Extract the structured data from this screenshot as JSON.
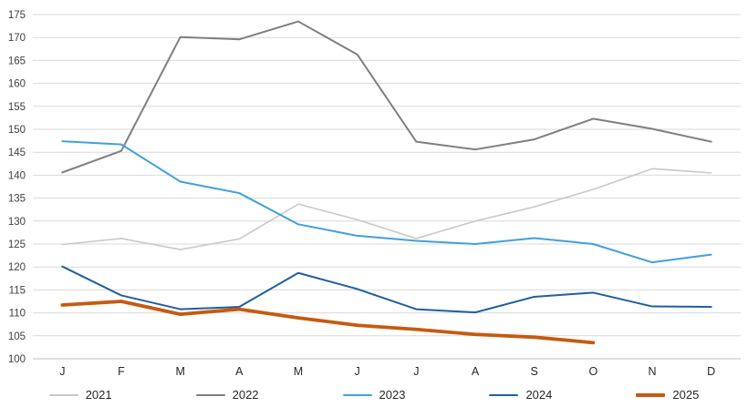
{
  "chart_data": {
    "type": "line",
    "title": "",
    "xlabel": "",
    "ylabel": "",
    "x": [
      "J",
      "F",
      "M",
      "A",
      "M",
      "J",
      "J",
      "A",
      "S",
      "O",
      "N",
      "D"
    ],
    "series": [
      {
        "name": "2021",
        "color": "#c9c9c9",
        "width": 1.6,
        "values": [
          124.9,
          126.2,
          123.8,
          126.1,
          133.7,
          130.3,
          126.2,
          130.0,
          133.1,
          136.9,
          141.4,
          140.5
        ]
      },
      {
        "name": "2022",
        "color": "#7f7f7f",
        "width": 2,
        "values": [
          140.6,
          145.3,
          170.1,
          169.6,
          173.5,
          166.3,
          147.3,
          145.6,
          147.8,
          152.3,
          150.1,
          147.3
        ]
      },
      {
        "name": "2023",
        "color": "#41a0dc",
        "width": 2,
        "values": [
          147.4,
          146.7,
          138.6,
          136.1,
          129.3,
          126.8,
          125.7,
          125.0,
          126.3,
          125.0,
          121.0,
          122.7
        ]
      },
      {
        "name": "2024",
        "color": "#1f5fa0",
        "width": 2,
        "values": [
          120.1,
          113.8,
          110.8,
          111.3,
          118.7,
          115.2,
          110.8,
          110.1,
          113.5,
          114.4,
          111.4,
          111.3
        ]
      },
      {
        "name": "2025",
        "color": "#c55a11",
        "width": 3.8,
        "values": [
          111.7,
          112.5,
          109.7,
          110.8,
          108.9,
          107.3,
          106.4,
          105.3,
          104.7,
          103.5,
          null,
          null
        ]
      }
    ],
    "ylim": [
      100,
      175
    ],
    "ytick_step": 5,
    "yticks": [
      100,
      105,
      110,
      115,
      120,
      125,
      130,
      135,
      140,
      145,
      150,
      155,
      160,
      165,
      170,
      175
    ],
    "grid": true,
    "gridline_color": "#d9d9d9",
    "axis_line_color": "#bfbfbf",
    "tick_label_color": "#404040",
    "legend_position": "bottom",
    "legend_entries": [
      "2021",
      "2022",
      "2023",
      "2024",
      "2025"
    ]
  }
}
